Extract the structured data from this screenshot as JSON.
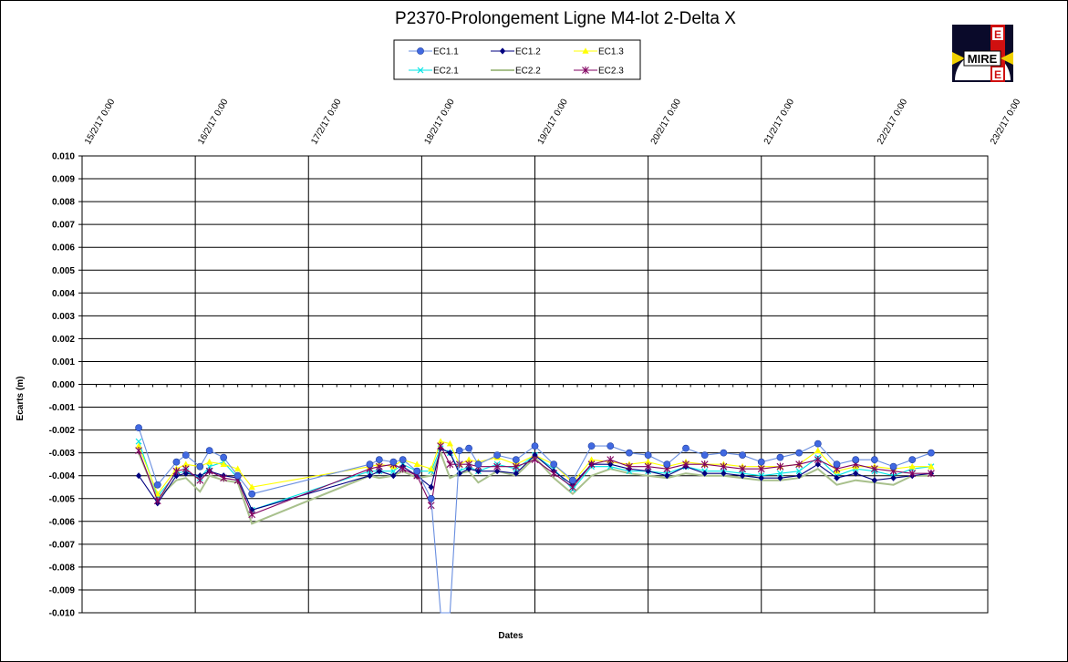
{
  "chart_data": {
    "type": "line",
    "title": "P2370-Prolongement  Ligne  M4-lot  2-Delta  X",
    "xlabel": "Dates",
    "ylabel": "Ecarts (m)",
    "ylim": [
      -0.01,
      0.01
    ],
    "ytick_labels": [
      "0.010",
      "0.009",
      "0.008",
      "0.007",
      "0.006",
      "0.005",
      "0.004",
      "0.003",
      "0.002",
      "0.001",
      "0.000",
      "-0.001",
      "-0.002",
      "-0.003",
      "-0.004",
      "-0.005",
      "-0.006",
      "-0.007",
      "-0.008",
      "-0.009",
      "-0.010"
    ],
    "x_axis_type": "date",
    "xlim": [
      "2017-02-15",
      "2017-02-23"
    ],
    "xtick_labels": [
      "15/2/17 0:00",
      "16/2/17 0:00",
      "17/2/17 0:00",
      "18/2/17 0:00",
      "19/2/17 0:00",
      "20/2/17 0:00",
      "21/2/17 0:00",
      "22/2/17 0:00",
      "23/2/17 0:00"
    ],
    "grid": true,
    "legend_position": "top-center",
    "series": [
      {
        "name": "EC1.1",
        "color": "#4169e1",
        "marker": "circle",
        "x": [
          "2017-02-15 12:00",
          "2017-02-15 16:00",
          "2017-02-15 20:00",
          "2017-02-15 22:00",
          "2017-02-16 01:00",
          "2017-02-16 03:00",
          "2017-02-16 06:00",
          "2017-02-16 09:00",
          "2017-02-16 12:00",
          "2017-02-17 13:00",
          "2017-02-17 15:00",
          "2017-02-17 18:00",
          "2017-02-17 20:00",
          "2017-02-17 23:00",
          "2017-02-18 02:00",
          "2017-02-18 04:00",
          "2017-02-18 06:00",
          "2017-02-18 08:00",
          "2017-02-18 10:00",
          "2017-02-18 12:00",
          "2017-02-18 16:00",
          "2017-02-18 20:00",
          "2017-02-19 00:00",
          "2017-02-19 04:00",
          "2017-02-19 08:00",
          "2017-02-19 12:00",
          "2017-02-19 16:00",
          "2017-02-19 20:00",
          "2017-02-20 00:00",
          "2017-02-20 04:00",
          "2017-02-20 08:00",
          "2017-02-20 12:00",
          "2017-02-20 16:00",
          "2017-02-20 20:00",
          "2017-02-21 00:00",
          "2017-02-21 04:00",
          "2017-02-21 08:00",
          "2017-02-21 12:00",
          "2017-02-21 16:00",
          "2017-02-21 20:00",
          "2017-02-22 00:00",
          "2017-02-22 04:00",
          "2017-02-22 08:00",
          "2017-02-22 12:00"
        ],
        "y": [
          -0.0019,
          -0.0044,
          -0.0034,
          -0.0031,
          -0.0036,
          -0.0029,
          -0.0032,
          -0.004,
          -0.0048,
          -0.0035,
          -0.0033,
          -0.0034,
          -0.0033,
          -0.0038,
          -0.005,
          -0.01,
          -0.01,
          -0.0029,
          -0.0028,
          -0.0035,
          -0.0031,
          -0.0033,
          -0.0027,
          -0.0035,
          -0.0042,
          -0.0027,
          -0.0027,
          -0.003,
          -0.0031,
          -0.0035,
          -0.0028,
          -0.0031,
          -0.003,
          -0.0031,
          -0.0034,
          -0.0032,
          -0.003,
          -0.0026,
          -0.0035,
          -0.0033,
          -0.0033,
          -0.0036,
          -0.0033,
          -0.003
        ]
      },
      {
        "name": "EC1.2",
        "color": "#000080",
        "marker": "diamond",
        "x": [
          "2017-02-15 12:00",
          "2017-02-15 16:00",
          "2017-02-15 20:00",
          "2017-02-15 22:00",
          "2017-02-16 01:00",
          "2017-02-16 03:00",
          "2017-02-16 06:00",
          "2017-02-16 09:00",
          "2017-02-16 12:00",
          "2017-02-17 13:00",
          "2017-02-17 15:00",
          "2017-02-17 18:00",
          "2017-02-17 20:00",
          "2017-02-17 23:00",
          "2017-02-18 02:00",
          "2017-02-18 04:00",
          "2017-02-18 06:00",
          "2017-02-18 08:00",
          "2017-02-18 10:00",
          "2017-02-18 12:00",
          "2017-02-18 16:00",
          "2017-02-18 20:00",
          "2017-02-19 00:00",
          "2017-02-19 04:00",
          "2017-02-19 08:00",
          "2017-02-19 12:00",
          "2017-02-19 16:00",
          "2017-02-19 20:00",
          "2017-02-20 00:00",
          "2017-02-20 04:00",
          "2017-02-20 08:00",
          "2017-02-20 12:00",
          "2017-02-20 16:00",
          "2017-02-20 20:00",
          "2017-02-21 00:00",
          "2017-02-21 04:00",
          "2017-02-21 08:00",
          "2017-02-21 12:00",
          "2017-02-21 16:00",
          "2017-02-21 20:00",
          "2017-02-22 00:00",
          "2017-02-22 04:00",
          "2017-02-22 08:00",
          "2017-02-22 12:00"
        ],
        "y": [
          -0.004,
          -0.0052,
          -0.004,
          -0.0039,
          -0.004,
          -0.0038,
          -0.004,
          -0.0041,
          -0.0055,
          -0.004,
          -0.0038,
          -0.004,
          -0.0036,
          -0.004,
          -0.0045,
          -0.0028,
          -0.003,
          -0.0039,
          -0.0037,
          -0.0038,
          -0.0038,
          -0.0039,
          -0.0031,
          -0.0038,
          -0.0044,
          -0.0035,
          -0.0035,
          -0.0037,
          -0.0038,
          -0.004,
          -0.0036,
          -0.0039,
          -0.0039,
          -0.004,
          -0.0041,
          -0.0041,
          -0.004,
          -0.0035,
          -0.0041,
          -0.0039,
          -0.0042,
          -0.0041,
          -0.004,
          -0.0039
        ]
      },
      {
        "name": "EC1.3",
        "color": "#ffff00",
        "marker": "triangle",
        "x": [
          "2017-02-15 12:00",
          "2017-02-15 16:00",
          "2017-02-15 20:00",
          "2017-02-15 22:00",
          "2017-02-16 01:00",
          "2017-02-16 03:00",
          "2017-02-16 06:00",
          "2017-02-16 09:00",
          "2017-02-16 12:00",
          "2017-02-17 13:00",
          "2017-02-17 15:00",
          "2017-02-17 18:00",
          "2017-02-17 20:00",
          "2017-02-17 23:00",
          "2017-02-18 02:00",
          "2017-02-18 04:00",
          "2017-02-18 06:00",
          "2017-02-18 08:00",
          "2017-02-18 10:00",
          "2017-02-18 12:00",
          "2017-02-18 16:00",
          "2017-02-18 20:00",
          "2017-02-19 00:00",
          "2017-02-19 04:00",
          "2017-02-19 08:00",
          "2017-02-19 12:00",
          "2017-02-19 16:00",
          "2017-02-19 20:00",
          "2017-02-20 00:00",
          "2017-02-20 04:00",
          "2017-02-20 08:00",
          "2017-02-20 12:00",
          "2017-02-20 16:00",
          "2017-02-20 20:00",
          "2017-02-21 00:00",
          "2017-02-21 04:00",
          "2017-02-21 08:00",
          "2017-02-21 12:00",
          "2017-02-21 16:00",
          "2017-02-21 20:00",
          "2017-02-22 00:00",
          "2017-02-22 04:00",
          "2017-02-22 08:00",
          "2017-02-22 12:00"
        ],
        "y": [
          -0.0027,
          -0.0048,
          -0.0037,
          -0.0035,
          -0.0036,
          -0.0034,
          -0.0035,
          -0.0037,
          -0.0045,
          -0.0036,
          -0.0035,
          -0.0036,
          -0.0033,
          -0.0035,
          -0.0037,
          -0.0025,
          -0.0026,
          -0.0035,
          -0.0033,
          -0.0034,
          -0.0032,
          -0.0035,
          -0.0031,
          -0.0035,
          -0.0043,
          -0.0033,
          -0.0034,
          -0.0035,
          -0.0034,
          -0.0036,
          -0.0034,
          -0.0035,
          -0.0035,
          -0.0036,
          -0.0036,
          -0.0036,
          -0.0035,
          -0.0029,
          -0.0038,
          -0.0036,
          -0.0036,
          -0.0037,
          -0.0036,
          -0.0036
        ]
      },
      {
        "name": "EC2.1",
        "color": "#00e5e5",
        "marker": "x",
        "x": [
          "2017-02-15 12:00",
          "2017-02-15 16:00",
          "2017-02-15 20:00",
          "2017-02-15 22:00",
          "2017-02-16 01:00",
          "2017-02-16 03:00",
          "2017-02-16 06:00",
          "2017-02-16 09:00",
          "2017-02-16 12:00",
          "2017-02-17 13:00",
          "2017-02-17 15:00",
          "2017-02-17 18:00",
          "2017-02-17 20:00",
          "2017-02-17 23:00",
          "2017-02-18 02:00",
          "2017-02-18 04:00",
          "2017-02-18 06:00",
          "2017-02-18 08:00",
          "2017-02-18 10:00",
          "2017-02-18 12:00",
          "2017-02-18 16:00",
          "2017-02-18 20:00",
          "2017-02-19 00:00",
          "2017-02-19 04:00",
          "2017-02-19 08:00",
          "2017-02-19 12:00",
          "2017-02-19 16:00",
          "2017-02-19 20:00",
          "2017-02-20 00:00",
          "2017-02-20 04:00",
          "2017-02-20 08:00",
          "2017-02-20 12:00",
          "2017-02-20 16:00",
          "2017-02-20 20:00",
          "2017-02-21 00:00",
          "2017-02-21 04:00",
          "2017-02-21 08:00",
          "2017-02-21 12:00",
          "2017-02-21 16:00",
          "2017-02-21 20:00",
          "2017-02-22 00:00",
          "2017-02-22 04:00",
          "2017-02-22 08:00",
          "2017-02-22 12:00"
        ],
        "y": [
          -0.0025,
          -0.0049,
          -0.0039,
          -0.0038,
          -0.0041,
          -0.0036,
          -0.0034,
          -0.0041,
          -0.0055,
          -0.0038,
          -0.0038,
          -0.0038,
          -0.0035,
          -0.0038,
          -0.0038,
          -0.0028,
          -0.003,
          -0.0038,
          -0.0036,
          -0.0038,
          -0.0035,
          -0.0037,
          -0.0031,
          -0.0037,
          -0.0046,
          -0.0036,
          -0.0036,
          -0.0038,
          -0.0038,
          -0.0039,
          -0.0036,
          -0.0038,
          -0.0038,
          -0.0039,
          -0.004,
          -0.0039,
          -0.0038,
          -0.0032,
          -0.004,
          -0.0037,
          -0.0038,
          -0.004,
          -0.0037,
          -0.0036
        ]
      },
      {
        "name": "EC2.2",
        "color": "#a8c08c",
        "marker": "none",
        "x": [
          "2017-02-15 12:00",
          "2017-02-15 16:00",
          "2017-02-15 20:00",
          "2017-02-15 22:00",
          "2017-02-16 01:00",
          "2017-02-16 03:00",
          "2017-02-16 06:00",
          "2017-02-16 09:00",
          "2017-02-16 12:00",
          "2017-02-17 13:00",
          "2017-02-17 15:00",
          "2017-02-17 18:00",
          "2017-02-17 20:00",
          "2017-02-17 23:00",
          "2017-02-18 02:00",
          "2017-02-18 04:00",
          "2017-02-18 06:00",
          "2017-02-18 08:00",
          "2017-02-18 10:00",
          "2017-02-18 12:00",
          "2017-02-18 16:00",
          "2017-02-18 20:00",
          "2017-02-19 00:00",
          "2017-02-19 04:00",
          "2017-02-19 08:00",
          "2017-02-19 12:00",
          "2017-02-19 16:00",
          "2017-02-19 20:00",
          "2017-02-20 00:00",
          "2017-02-20 04:00",
          "2017-02-20 08:00",
          "2017-02-20 12:00",
          "2017-02-20 16:00",
          "2017-02-20 20:00",
          "2017-02-21 00:00",
          "2017-02-21 04:00",
          "2017-02-21 08:00",
          "2017-02-21 12:00",
          "2017-02-21 16:00",
          "2017-02-21 20:00",
          "2017-02-22 00:00",
          "2017-02-22 04:00",
          "2017-02-22 08:00",
          "2017-02-22 12:00"
        ],
        "y": [
          -0.003,
          -0.005,
          -0.0042,
          -0.0041,
          -0.0047,
          -0.004,
          -0.0042,
          -0.0043,
          -0.0061,
          -0.004,
          -0.0041,
          -0.004,
          -0.0038,
          -0.0041,
          -0.004,
          -0.003,
          -0.0041,
          -0.0039,
          -0.0038,
          -0.0043,
          -0.0038,
          -0.004,
          -0.0032,
          -0.0041,
          -0.0048,
          -0.004,
          -0.0037,
          -0.0039,
          -0.004,
          -0.0041,
          -0.0039,
          -0.004,
          -0.004,
          -0.0041,
          -0.0042,
          -0.0042,
          -0.0041,
          -0.0037,
          -0.0044,
          -0.0042,
          -0.0043,
          -0.0044,
          -0.004,
          -0.004
        ]
      },
      {
        "name": "EC2.3",
        "color": "#800060",
        "marker": "star",
        "x": [
          "2017-02-15 12:00",
          "2017-02-15 16:00",
          "2017-02-15 20:00",
          "2017-02-15 22:00",
          "2017-02-16 01:00",
          "2017-02-16 03:00",
          "2017-02-16 06:00",
          "2017-02-16 09:00",
          "2017-02-16 12:00",
          "2017-02-17 13:00",
          "2017-02-17 15:00",
          "2017-02-17 18:00",
          "2017-02-17 20:00",
          "2017-02-17 23:00",
          "2017-02-18 02:00",
          "2017-02-18 04:00",
          "2017-02-18 06:00",
          "2017-02-18 08:00",
          "2017-02-18 10:00",
          "2017-02-18 12:00",
          "2017-02-18 16:00",
          "2017-02-18 20:00",
          "2017-02-19 00:00",
          "2017-02-19 04:00",
          "2017-02-19 08:00",
          "2017-02-19 12:00",
          "2017-02-19 16:00",
          "2017-02-19 20:00",
          "2017-02-20 00:00",
          "2017-02-20 04:00",
          "2017-02-20 08:00",
          "2017-02-20 12:00",
          "2017-02-20 16:00",
          "2017-02-20 20:00",
          "2017-02-21 00:00",
          "2017-02-21 04:00",
          "2017-02-21 08:00",
          "2017-02-21 12:00",
          "2017-02-21 16:00",
          "2017-02-21 20:00",
          "2017-02-22 00:00",
          "2017-02-22 04:00",
          "2017-02-22 08:00",
          "2017-02-22 12:00"
        ],
        "y": [
          -0.0029,
          -0.0051,
          -0.0038,
          -0.0037,
          -0.0042,
          -0.0038,
          -0.0041,
          -0.0042,
          -0.0057,
          -0.0037,
          -0.0036,
          -0.0035,
          -0.0037,
          -0.004,
          -0.0053,
          -0.0027,
          -0.0035,
          -0.0035,
          -0.0035,
          -0.0036,
          -0.0036,
          -0.0036,
          -0.0033,
          -0.0039,
          -0.0045,
          -0.0035,
          -0.0033,
          -0.0036,
          -0.0036,
          -0.0037,
          -0.0035,
          -0.0035,
          -0.0036,
          -0.0037,
          -0.0037,
          -0.0036,
          -0.0035,
          -0.0033,
          -0.0037,
          -0.0035,
          -0.0037,
          -0.0038,
          -0.0039,
          -0.0039
        ]
      }
    ]
  },
  "logo": {
    "text": "MIRE",
    "letters": "E"
  }
}
